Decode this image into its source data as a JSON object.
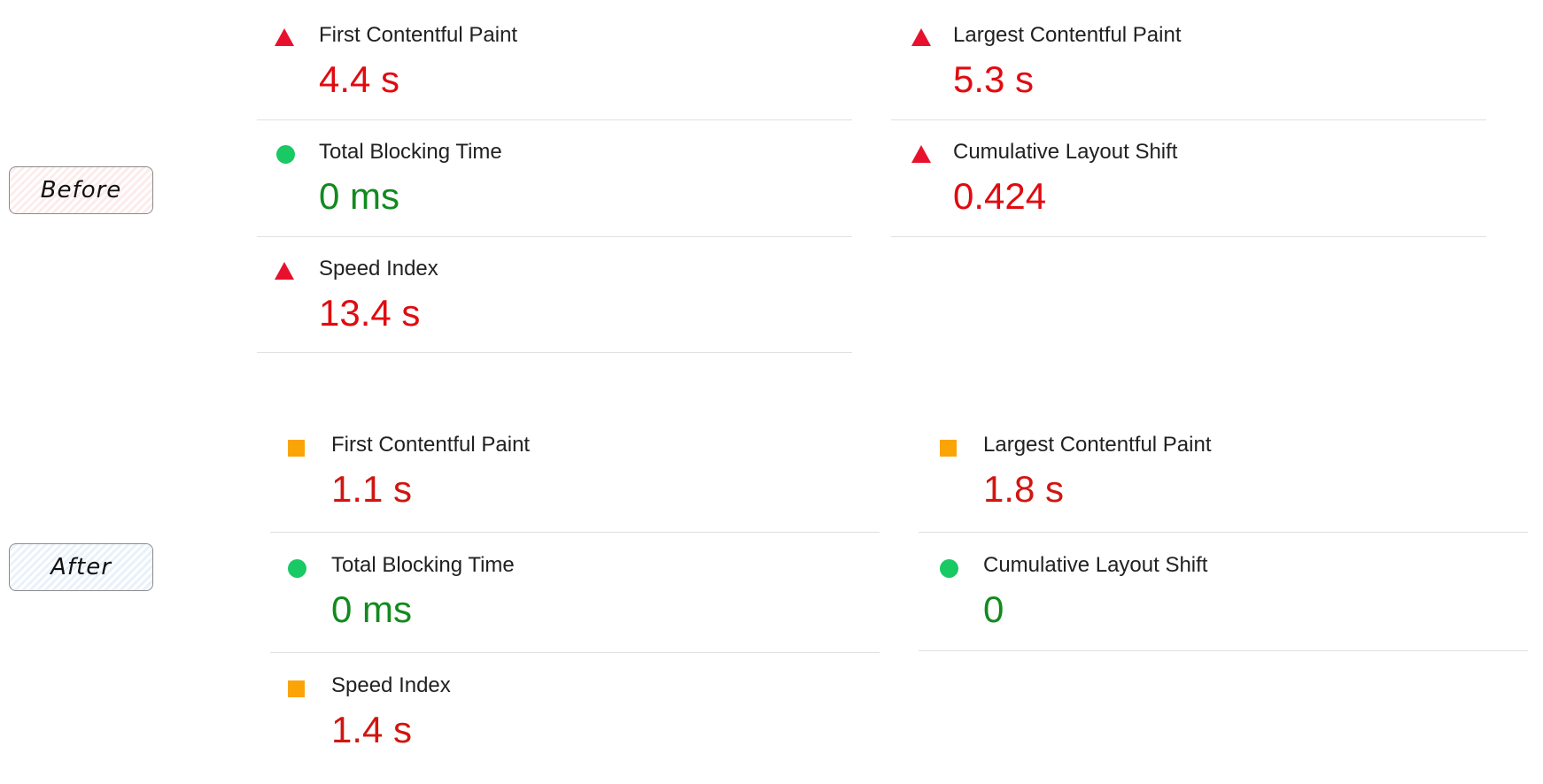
{
  "before": {
    "tag_label": "Before",
    "metrics": [
      {
        "label": "First Contentful Paint",
        "value": "4.4 s",
        "status": "fail"
      },
      {
        "label": "Largest Contentful Paint",
        "value": "5.3 s",
        "status": "fail"
      },
      {
        "label": "Total Blocking Time",
        "value": "0 ms",
        "status": "pass"
      },
      {
        "label": "Cumulative Layout Shift",
        "value": "0.424",
        "status": "fail"
      },
      {
        "label": "Speed Index",
        "value": "13.4 s",
        "status": "fail"
      }
    ]
  },
  "after": {
    "tag_label": "After",
    "metrics": [
      {
        "label": "First Contentful Paint",
        "value": "1.1 s",
        "status": "average"
      },
      {
        "label": "Largest Contentful Paint",
        "value": "1.8 s",
        "status": "average"
      },
      {
        "label": "Total Blocking Time",
        "value": "0 ms",
        "status": "pass"
      },
      {
        "label": "Cumulative Layout Shift",
        "value": "0",
        "status": "pass"
      },
      {
        "label": "Speed Index",
        "value": "1.4 s",
        "status": "average"
      }
    ]
  },
  "icons": {
    "fail": "red-triangle-icon",
    "pass": "green-circle-icon",
    "average": "orange-square-icon"
  },
  "colors": {
    "fail_value": "#e00b10",
    "average_value": "#d11510",
    "pass_value": "#128a1e",
    "fail_icon": "#e8112d",
    "pass_icon": "#18c964",
    "average_icon": "#fba407"
  }
}
